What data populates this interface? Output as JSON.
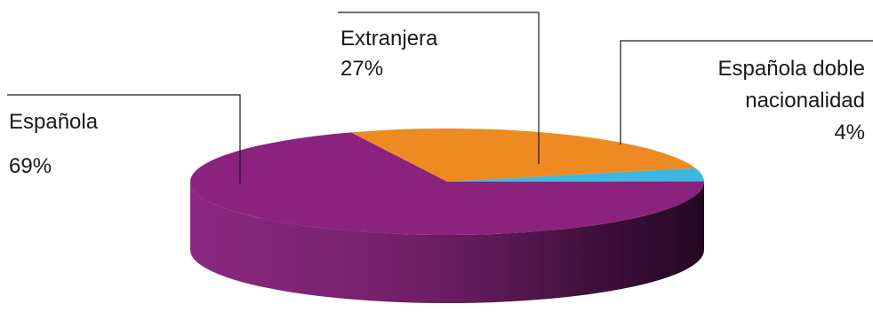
{
  "chart_data": {
    "type": "pie",
    "slices": [
      {
        "label": "Española",
        "value": 69,
        "value_label": "69%",
        "color": "#8b237e"
      },
      {
        "label": "Extranjera",
        "value": 27,
        "value_label": "27%",
        "color": "#ee8a22"
      },
      {
        "label": "Española doble nacionalidad",
        "value": 4,
        "value_label": "4%",
        "color": "#3bb8df"
      }
    ],
    "style": "3d"
  }
}
